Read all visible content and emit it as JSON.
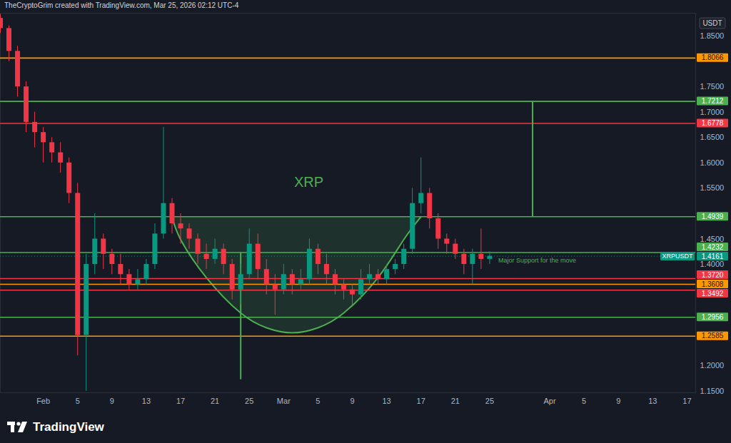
{
  "chart_data": {
    "type": "candlestick",
    "title": "XRP",
    "header": "TheCryptoGrim created with TradingView.com, Mar 25, 2026 02:12 UTC-4",
    "footer": "TradingView",
    "currency": "USDT",
    "x": [
      "2026-01-27",
      "2026-01-28",
      "2026-01-29",
      "2026-01-30",
      "2026-01-31",
      "2026-02-01",
      "2026-02-02",
      "2026-02-03",
      "2026-02-04",
      "2026-02-05",
      "2026-02-06",
      "2026-02-07",
      "2026-02-08",
      "2026-02-09",
      "2026-02-10",
      "2026-02-11",
      "2026-02-12",
      "2026-02-13",
      "2026-02-14",
      "2026-02-15",
      "2026-02-16",
      "2026-02-17",
      "2026-02-18",
      "2026-02-19",
      "2026-02-20",
      "2026-02-21",
      "2026-02-22",
      "2026-02-23",
      "2026-02-24",
      "2026-02-25",
      "2026-02-26",
      "2026-02-27",
      "2026-02-28",
      "2026-03-01",
      "2026-03-02",
      "2026-03-03",
      "2026-03-04",
      "2026-03-05",
      "2026-03-06",
      "2026-03-07",
      "2026-03-08",
      "2026-03-09",
      "2026-03-10",
      "2026-03-11",
      "2026-03-12",
      "2026-03-13",
      "2026-03-14",
      "2026-03-15",
      "2026-03-16",
      "2026-03-17",
      "2026-03-18",
      "2026-03-19",
      "2026-03-20",
      "2026-03-21",
      "2026-03-22",
      "2026-03-23",
      "2026-03-24",
      "2026-03-25"
    ],
    "open": [
      1.885,
      1.865,
      1.82,
      1.75,
      1.68,
      1.66,
      1.64,
      1.62,
      1.6,
      1.54,
      1.26,
      1.4,
      1.45,
      1.42,
      1.4,
      1.38,
      1.36,
      1.37,
      1.4,
      1.46,
      1.52,
      1.48,
      1.47,
      1.45,
      1.42,
      1.41,
      1.43,
      1.4,
      1.35,
      1.38,
      1.44,
      1.39,
      1.36,
      1.35,
      1.38,
      1.36,
      1.37,
      1.43,
      1.4,
      1.38,
      1.36,
      1.35,
      1.34,
      1.37,
      1.38,
      1.37,
      1.39,
      1.4,
      1.43,
      1.52,
      1.54,
      1.49,
      1.45,
      1.44,
      1.42,
      1.4,
      1.42,
      1.41
    ],
    "high": [
      1.893,
      1.87,
      1.83,
      1.76,
      1.7,
      1.67,
      1.65,
      1.64,
      1.61,
      1.56,
      1.42,
      1.5,
      1.46,
      1.43,
      1.42,
      1.39,
      1.39,
      1.41,
      1.48,
      1.67,
      1.53,
      1.5,
      1.48,
      1.46,
      1.44,
      1.45,
      1.44,
      1.41,
      1.4,
      1.47,
      1.46,
      1.41,
      1.38,
      1.4,
      1.39,
      1.39,
      1.45,
      1.44,
      1.42,
      1.39,
      1.37,
      1.36,
      1.39,
      1.4,
      1.39,
      1.4,
      1.41,
      1.44,
      1.55,
      1.61,
      1.55,
      1.5,
      1.46,
      1.45,
      1.43,
      1.43,
      1.47,
      1.425
    ],
    "low": [
      1.855,
      1.8,
      1.73,
      1.66,
      1.63,
      1.6,
      1.6,
      1.58,
      1.52,
      1.22,
      1.15,
      1.38,
      1.39,
      1.38,
      1.36,
      1.35,
      1.35,
      1.36,
      1.39,
      1.45,
      1.46,
      1.44,
      1.43,
      1.4,
      1.39,
      1.4,
      1.38,
      1.33,
      1.32,
      1.37,
      1.37,
      1.34,
      1.3,
      1.34,
      1.34,
      1.35,
      1.36,
      1.38,
      1.36,
      1.34,
      1.33,
      1.32,
      1.33,
      1.36,
      1.36,
      1.36,
      1.38,
      1.39,
      1.42,
      1.5,
      1.47,
      1.43,
      1.42,
      1.41,
      1.38,
      1.36,
      1.39,
      1.4
    ],
    "close": [
      1.865,
      1.82,
      1.75,
      1.68,
      1.66,
      1.64,
      1.62,
      1.6,
      1.54,
      1.26,
      1.4,
      1.45,
      1.42,
      1.4,
      1.38,
      1.36,
      1.37,
      1.4,
      1.46,
      1.52,
      1.48,
      1.47,
      1.45,
      1.42,
      1.41,
      1.43,
      1.4,
      1.35,
      1.38,
      1.44,
      1.39,
      1.36,
      1.35,
      1.38,
      1.36,
      1.37,
      1.43,
      1.4,
      1.38,
      1.36,
      1.35,
      1.34,
      1.37,
      1.38,
      1.37,
      1.39,
      1.4,
      1.43,
      1.52,
      1.54,
      1.49,
      1.45,
      1.44,
      1.42,
      1.4,
      1.42,
      1.41,
      1.4161
    ],
    "xlim": [
      "2026-01-27",
      "2026-04-18"
    ],
    "xticks": [
      {
        "value": "2026-02-01",
        "label": "Feb"
      },
      {
        "value": "2026-02-05",
        "label": "5"
      },
      {
        "value": "2026-02-09",
        "label": "9"
      },
      {
        "value": "2026-02-13",
        "label": "13"
      },
      {
        "value": "2026-02-17",
        "label": "17"
      },
      {
        "value": "2026-02-21",
        "label": "21"
      },
      {
        "value": "2026-02-25",
        "label": "25"
      },
      {
        "value": "2026-03-01",
        "label": "Mar"
      },
      {
        "value": "2026-03-05",
        "label": "5"
      },
      {
        "value": "2026-03-09",
        "label": "9"
      },
      {
        "value": "2026-03-13",
        "label": "13"
      },
      {
        "value": "2026-03-17",
        "label": "17"
      },
      {
        "value": "2026-03-21",
        "label": "21"
      },
      {
        "value": "2026-03-25",
        "label": "25"
      },
      {
        "value": "2026-04-01",
        "label": "Apr"
      },
      {
        "value": "2026-04-05",
        "label": "5"
      },
      {
        "value": "2026-04-09",
        "label": "9"
      },
      {
        "value": "2026-04-13",
        "label": "13"
      },
      {
        "value": "2026-04-17",
        "label": "17"
      }
    ],
    "ylim": [
      1.147,
      1.895
    ],
    "yticks": [
      {
        "value": 1.85,
        "label": "1.8500"
      },
      {
        "value": 1.75,
        "label": "1.7500"
      },
      {
        "value": 1.7,
        "label": "1.7000"
      },
      {
        "value": 1.65,
        "label": "1.6500"
      },
      {
        "value": 1.6,
        "label": "1.6000"
      },
      {
        "value": 1.55,
        "label": "1.5500"
      },
      {
        "value": 1.45,
        "label": "1.4500"
      },
      {
        "value": 1.4,
        "label": "1.4000"
      },
      {
        "value": 1.2,
        "label": "1.2000"
      },
      {
        "value": 1.15,
        "label": "1.1500"
      }
    ],
    "grid": false,
    "levels": [
      {
        "value": 1.8066,
        "color": "#ff9800"
      },
      {
        "value": 1.7212,
        "color": "#4caf50"
      },
      {
        "value": 1.6778,
        "color": "#f23645"
      },
      {
        "value": 1.4939,
        "color": "#4caf50"
      },
      {
        "value": 1.4232,
        "color": "#4caf50"
      },
      {
        "value": 1.372,
        "label": "1.3720",
        "color": "#f23645"
      },
      {
        "value": 1.3608,
        "color": "#ff9800"
      },
      {
        "value": 1.3492,
        "color": "#f23645"
      },
      {
        "value": 1.2956,
        "color": "#4caf50"
      },
      {
        "value": 1.2585,
        "color": "#ff9800"
      }
    ],
    "last_price": {
      "value": 1.4161,
      "label": "XRPUSDT",
      "color": "#089981"
    },
    "cup": {
      "x": [
        "2026-02-16",
        "2026-02-17",
        "2026-02-20",
        "2026-02-24",
        "2026-02-27",
        "2026-03-02",
        "2026-03-05",
        "2026-03-08",
        "2026-03-12",
        "2026-03-15",
        "2026-03-17"
      ],
      "y": [
        1.4939,
        1.449,
        1.374,
        1.304,
        1.275,
        1.265,
        1.275,
        1.304,
        1.374,
        1.449,
        1.4939
      ]
    },
    "measures": [
      {
        "x": "2026-02-24",
        "y": [
          1.4232,
          1.1728
        ]
      },
      {
        "x": "2026-03-30",
        "y": [
          1.4939,
          1.7212
        ]
      }
    ],
    "annotations": [
      {
        "text": "Major Support for the move",
        "x": "2026-03-26",
        "y": 1.407
      }
    ]
  }
}
